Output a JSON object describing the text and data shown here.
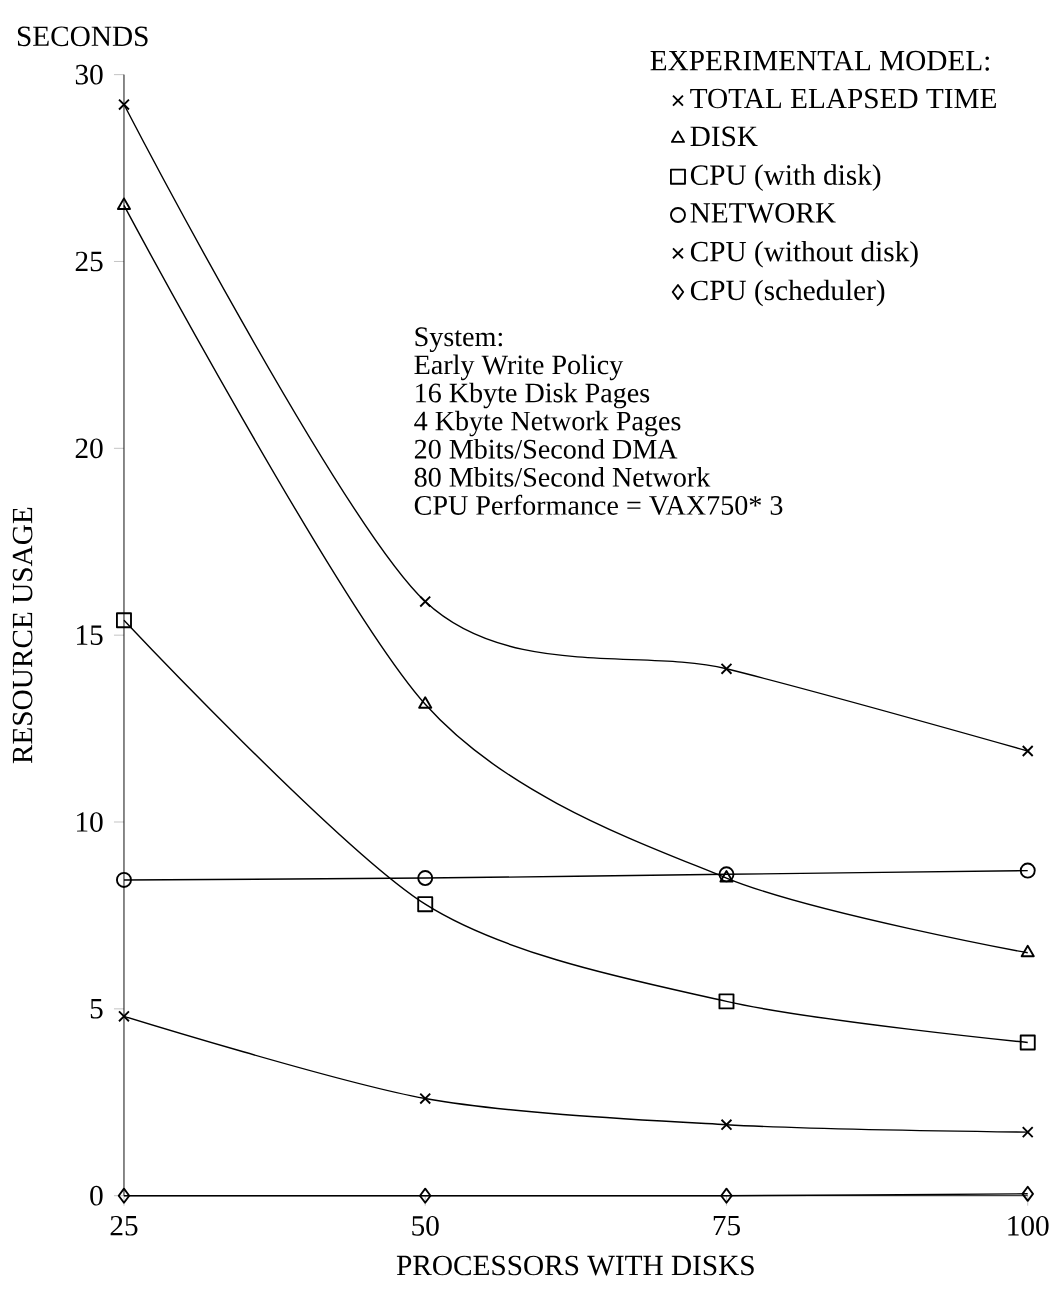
{
  "chart_data": {
    "type": "line",
    "xlabel": "PROCESSORS WITH DISKS",
    "ylabel": "RESOURCE USAGE",
    "legend_title": "EXPERIMENTAL MODEL:",
    "x": [
      25,
      50,
      75,
      100
    ],
    "series": [
      {
        "name": "TOTAL ELAPSED TIME",
        "color": "#000000",
        "marker": "cross",
        "values": [
          29.2,
          15.9,
          14.1,
          11.9
        ]
      },
      {
        "name": "DISK",
        "color": "#000000",
        "marker": "triangle",
        "values": [
          26.5,
          13.15,
          8.5,
          6.5
        ]
      },
      {
        "name": "CPU (with disk)",
        "color": "#000000",
        "marker": "square",
        "values": [
          15.4,
          7.8,
          5.2,
          4.1
        ]
      },
      {
        "name": "NETWORK",
        "color": "#000000",
        "marker": "circle",
        "values": [
          8.45,
          8.5,
          8.6,
          8.7
        ]
      },
      {
        "name": "CPU (without disk)",
        "color": "#000000",
        "marker": "cross",
        "values": [
          4.8,
          2.6,
          1.9,
          1.7
        ]
      },
      {
        "name": "CPU (scheduler)",
        "color": "#000000",
        "marker": "diamond",
        "values": [
          0,
          0,
          0,
          0.05
        ]
      }
    ],
    "xlim": [
      25,
      100
    ],
    "xticks": [
      25,
      50,
      75,
      100
    ],
    "ylim": [
      0,
      30
    ],
    "yticks": [
      0,
      5,
      10,
      15,
      20,
      25,
      30
    ],
    "legend": "top right",
    "grid": false,
    "line_style": "solid",
    "annotations": [
      "SECONDS",
      "System:",
      "Early Write Policy",
      "16 Kbyte Disk Pages",
      "4 Kbyte Network Pages",
      "20 Mbits/Second DMA",
      "80 Mbits/Second Network",
      "CPU Performance = VAX750* 3"
    ]
  }
}
